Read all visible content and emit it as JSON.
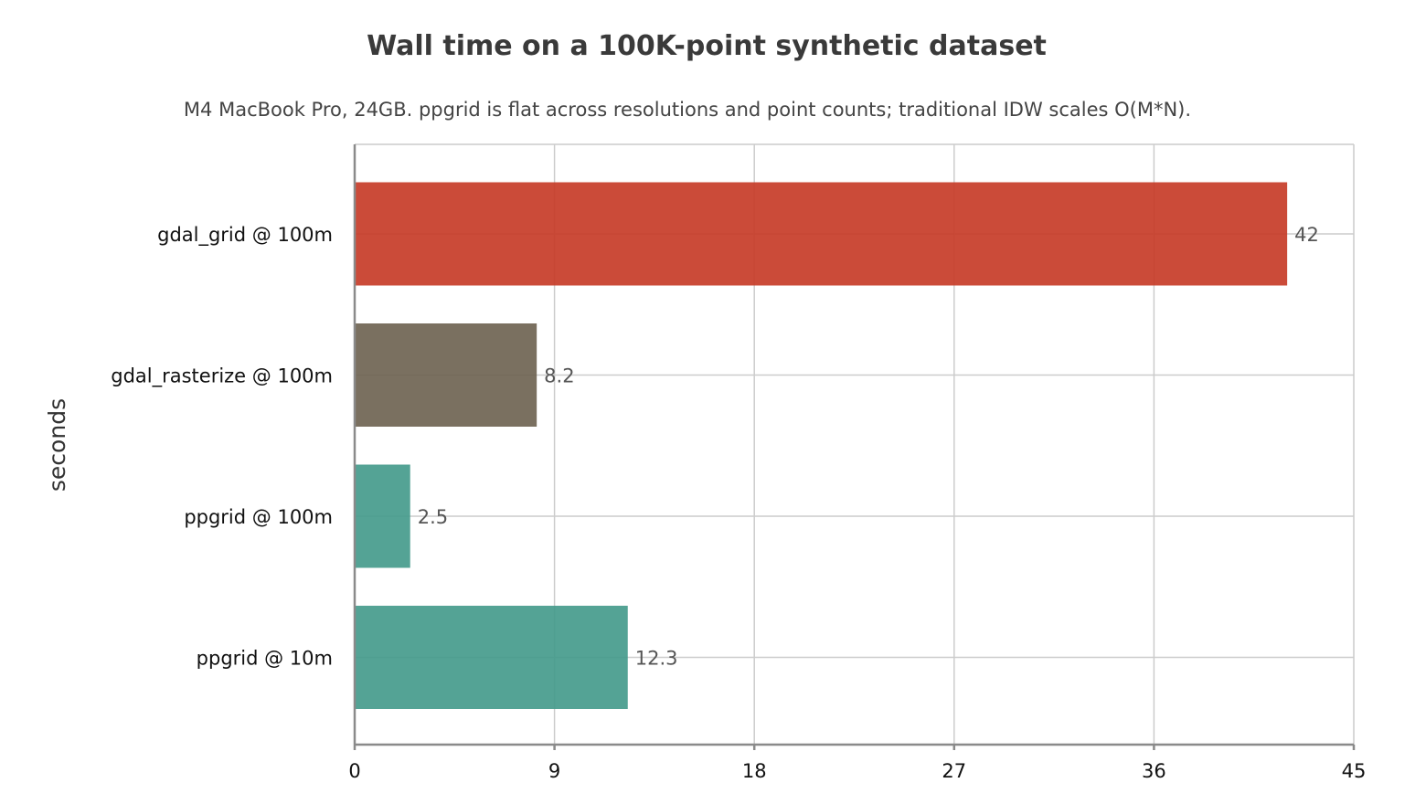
{
  "chart_data": {
    "type": "bar",
    "orientation": "horizontal",
    "title": "Wall time on a 100K-point synthetic dataset",
    "subtitle": "M4 MacBook Pro, 24GB. ppgrid is flat across resolutions and point counts; traditional IDW scales O(M*N).",
    "ylabel": "seconds",
    "xlabel": "",
    "categories": [
      "gdal_grid @ 100m",
      "gdal_rasterize @ 100m",
      "ppgrid @ 100m",
      "ppgrid @ 10m"
    ],
    "values": [
      42,
      8.2,
      2.5,
      12.3
    ],
    "value_labels": [
      "42",
      "8.2",
      "2.5",
      "12.3"
    ],
    "colors": [
      "#c73c28",
      "#6f6453",
      "#459b8c",
      "#459b8c"
    ],
    "xlim": [
      0,
      45
    ],
    "ticks": [
      0,
      9,
      18,
      27,
      36,
      45
    ],
    "tick_labels": [
      "0",
      "9",
      "18",
      "27",
      "36",
      "45"
    ],
    "grid": true,
    "legend": "none"
  }
}
